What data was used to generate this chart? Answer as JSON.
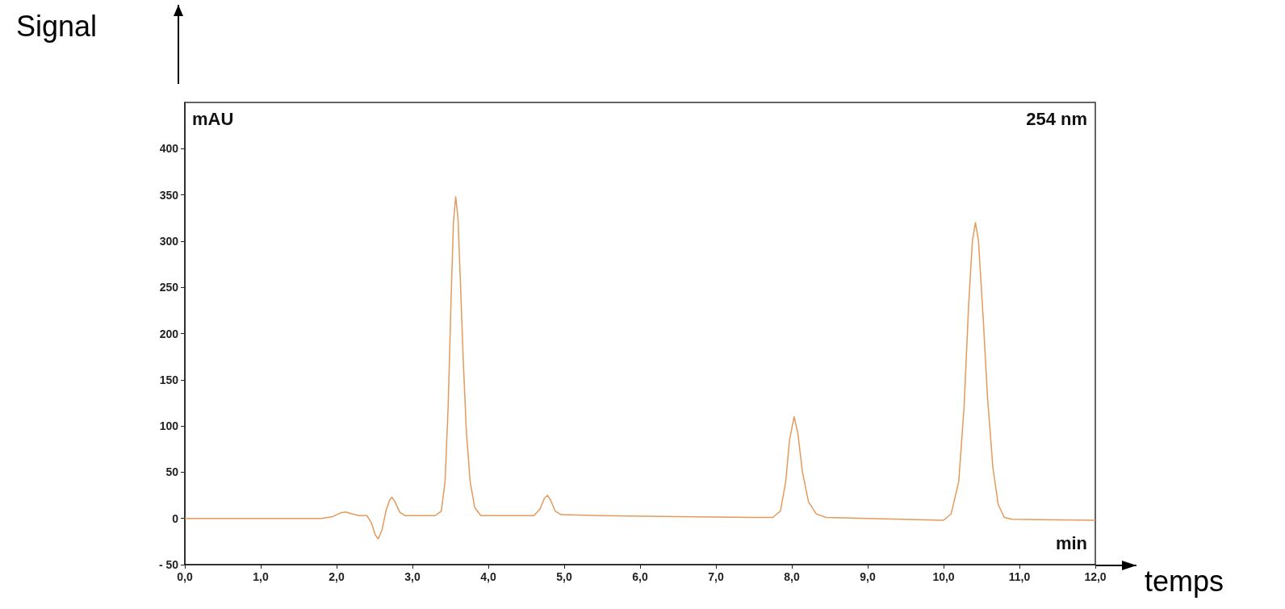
{
  "chart_data": {
    "type": "line",
    "xlabel": "min",
    "ylabel": "mAU",
    "annotations": [
      "254 nm",
      "Signal",
      "temps"
    ],
    "x": [
      0,
      1.0,
      1.8,
      1.95,
      2.05,
      2.12,
      2.2,
      2.3,
      2.4,
      2.46,
      2.51,
      2.55,
      2.6,
      2.65,
      2.7,
      2.73,
      2.77,
      2.83,
      2.9,
      3.0,
      3.3,
      3.38,
      3.43,
      3.47,
      3.51,
      3.54,
      3.57,
      3.6,
      3.63,
      3.67,
      3.71,
      3.76,
      3.82,
      3.9,
      4.2,
      4.6,
      4.68,
      4.74,
      4.78,
      4.82,
      4.88,
      4.96,
      5.5,
      6.5,
      7.5,
      7.75,
      7.85,
      7.92,
      7.97,
      8.03,
      8.08,
      8.14,
      8.22,
      8.32,
      8.45,
      9.0,
      10.0,
      10.1,
      10.2,
      10.27,
      10.33,
      10.38,
      10.42,
      10.46,
      10.52,
      10.58,
      10.65,
      10.72,
      10.8,
      10.9,
      12.0
    ],
    "series": [
      {
        "color": "#e39a5a",
        "values": [
          0,
          0,
          0,
          2,
          6,
          7,
          5,
          3,
          3,
          -5,
          -18,
          -22,
          -12,
          8,
          20,
          23,
          18,
          7,
          3,
          3,
          3,
          8,
          40,
          120,
          240,
          320,
          348,
          325,
          260,
          170,
          95,
          40,
          12,
          3,
          3,
          3,
          10,
          22,
          25,
          20,
          8,
          4,
          3,
          2,
          1,
          1,
          8,
          40,
          85,
          110,
          92,
          50,
          18,
          5,
          1,
          0,
          -2,
          5,
          40,
          120,
          230,
          300,
          320,
          300,
          220,
          130,
          55,
          15,
          1,
          -1,
          -2
        ]
      }
    ],
    "xlim": [
      0,
      12
    ],
    "xticks": [
      {
        "value": 0,
        "label": "0,0"
      },
      {
        "value": 1,
        "label": "1,0"
      },
      {
        "value": 2,
        "label": "2,0"
      },
      {
        "value": 3,
        "label": "3,0"
      },
      {
        "value": 4,
        "label": "4,0"
      },
      {
        "value": 5,
        "label": "5,0"
      },
      {
        "value": 6,
        "label": "6,0"
      },
      {
        "value": 7,
        "label": "7,0"
      },
      {
        "value": 8,
        "label": "8,0"
      },
      {
        "value": 9,
        "label": "9,0"
      },
      {
        "value": 10,
        "label": "10,0"
      },
      {
        "value": 11,
        "label": "11,0"
      },
      {
        "value": 12,
        "label": "12,0"
      }
    ],
    "ylim": [
      -50,
      450
    ],
    "yticks": [
      {
        "value": -50,
        "label": "- 50"
      },
      0,
      50,
      100,
      150,
      200,
      250,
      300,
      350,
      400
    ],
    "grid": false,
    "marker": "none",
    "line_style": "solid"
  }
}
